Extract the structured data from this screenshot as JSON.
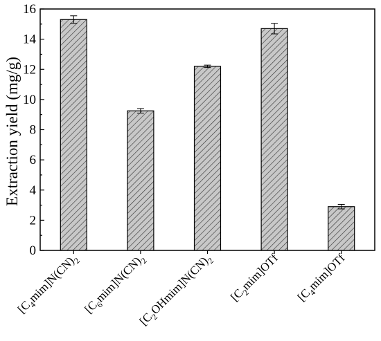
{
  "chart_data": {
    "type": "bar",
    "title": "",
    "xlabel": "",
    "ylabel": "Extraction yield (mg/g)",
    "ylim": [
      0,
      16
    ],
    "yticks": [
      0,
      2,
      4,
      6,
      8,
      10,
      12,
      14,
      16
    ],
    "grid": false,
    "legend": "none",
    "bar_fill": "#c8c8c8",
    "hatch": "diagonal",
    "categories": [
      {
        "label": "[C4mim]N(CN)2",
        "parts": [
          [
            "[C",
            ""
          ],
          [
            "4",
            "sub"
          ],
          [
            "mim]N(CN)",
            ""
          ],
          [
            "2",
            "sub"
          ]
        ]
      },
      {
        "label": "[C6mim]N(CN)2",
        "parts": [
          [
            "[C",
            ""
          ],
          [
            "6",
            "sub"
          ],
          [
            "mim]N(CN)",
            ""
          ],
          [
            "2",
            "sub"
          ]
        ]
      },
      {
        "label": "[C2OHmim]N(CN)2",
        "parts": [
          [
            "[C",
            ""
          ],
          [
            "2",
            "sub"
          ],
          [
            "OHmim]N(CN)",
            ""
          ],
          [
            "2",
            "sub"
          ]
        ]
      },
      {
        "label": "[C2mim]OTf",
        "parts": [
          [
            "[C",
            ""
          ],
          [
            "2",
            "sub"
          ],
          [
            "mim]OTf",
            ""
          ]
        ]
      },
      {
        "label": "[C4mim]OTf",
        "parts": [
          [
            "[C",
            ""
          ],
          [
            "4",
            "sub"
          ],
          [
            "mim]OTf",
            ""
          ]
        ]
      }
    ],
    "values": [
      15.3,
      9.25,
      12.2,
      14.7,
      2.9
    ],
    "errors": [
      0.25,
      0.15,
      0.08,
      0.35,
      0.15
    ]
  }
}
